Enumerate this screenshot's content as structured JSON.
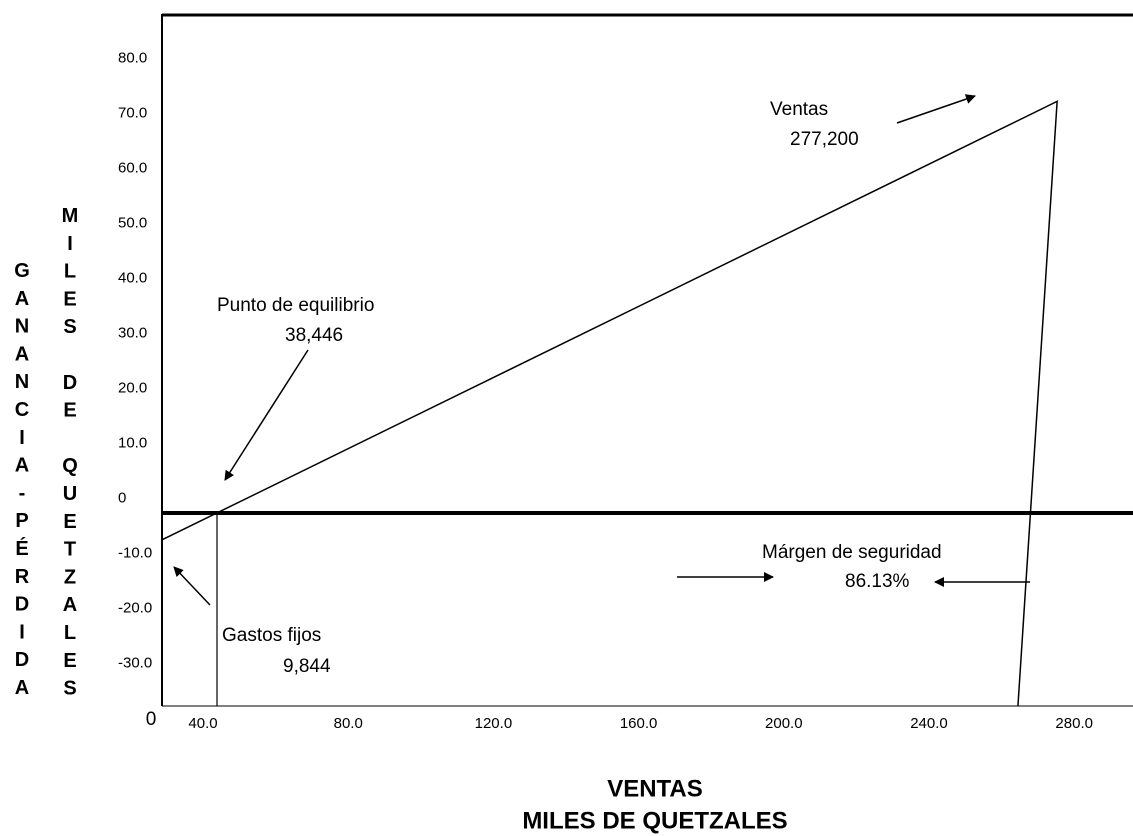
{
  "chart_data": {
    "type": "line",
    "title": "VENTAS",
    "subtitle": "MILES DE QUETZALES",
    "y_label_outer": "GANANCIA-PÉRDIDA",
    "y_label_inner": "MILES DE QUETZALES",
    "origin_label": "0",
    "x": [
      28.7,
      275.3,
      264.5
    ],
    "values": [
      -7.5,
      72.2,
      -37.7
    ],
    "color": "#000000",
    "xlim": [
      28.7,
      296.2
    ],
    "ylim": [
      -37.7,
      87.9
    ],
    "xticks": [
      {
        "value": 40,
        "label": "40.0"
      },
      {
        "value": 80,
        "label": "80.0"
      },
      {
        "value": 120,
        "label": "120.0"
      },
      {
        "value": 160,
        "label": "160.0"
      },
      {
        "value": 200,
        "label": "200.0"
      },
      {
        "value": 240,
        "label": "240.0"
      },
      {
        "value": 280,
        "label": "280.0"
      }
    ],
    "yticks": [
      {
        "value": 80,
        "label": "80.0"
      },
      {
        "value": 70,
        "label": "70.0"
      },
      {
        "value": 60,
        "label": "60.0"
      },
      {
        "value": 50,
        "label": "50.0"
      },
      {
        "value": 40,
        "label": "40.0"
      },
      {
        "value": 30,
        "label": "30.0"
      },
      {
        "value": 20,
        "label": "20.0"
      },
      {
        "value": 10,
        "label": "10.0"
      },
      0,
      {
        "value": -10,
        "label": "-10.0"
      },
      {
        "value": -20,
        "label": "-20.0"
      },
      {
        "value": -30,
        "label": "-30.0"
      }
    ],
    "annotations": {
      "ventas": "Ventas",
      "ventas_value": "277,200",
      "equilibrio": "Punto de equilibrio",
      "equilibrio_value": "38,446",
      "margen": "Márgen de seguridad",
      "margen_value": "86.13%",
      "gastos": "Gastos fijos",
      "gastos_value": "9,844"
    }
  }
}
